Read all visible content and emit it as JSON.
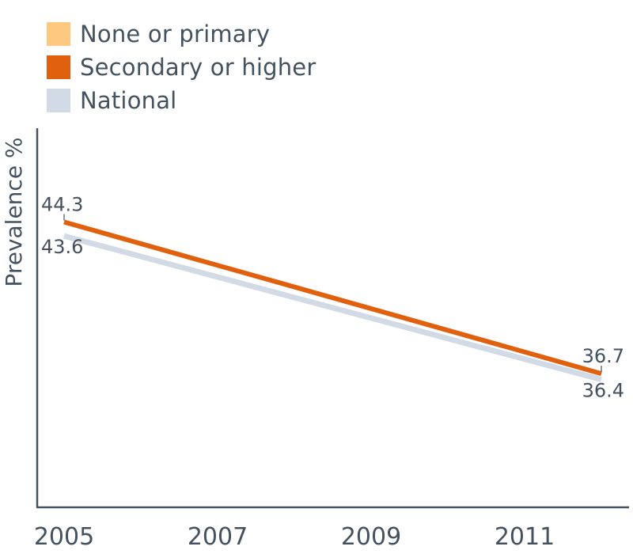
{
  "chart_data": {
    "type": "line",
    "ylabel": "Prevalence %",
    "x_ticks": [
      "2005",
      "2007",
      "2009",
      "2011"
    ],
    "xlim": [
      2005,
      2012
    ],
    "ylim": [
      30,
      49
    ],
    "grid": false,
    "legend_placement": "top-left",
    "series": [
      {
        "name": "None or primary",
        "color": "#fdc981",
        "x": [],
        "y": []
      },
      {
        "name": "Secondary or higher",
        "color": "#e0600e",
        "x": [
          2005,
          2012
        ],
        "y": [
          44.3,
          36.7
        ]
      },
      {
        "name": "National",
        "color": "#d1dae5",
        "x": [
          2005,
          2012
        ],
        "y": [
          43.6,
          36.4
        ]
      }
    ],
    "data_labels": [
      {
        "x": 2005,
        "y": 44.3,
        "text": "44.3"
      },
      {
        "x": 2005,
        "y": 43.6,
        "text": "43.6"
      },
      {
        "x": 2012,
        "y": 36.7,
        "text": "36.7"
      },
      {
        "x": 2012,
        "y": 36.4,
        "text": "36.4"
      }
    ]
  }
}
